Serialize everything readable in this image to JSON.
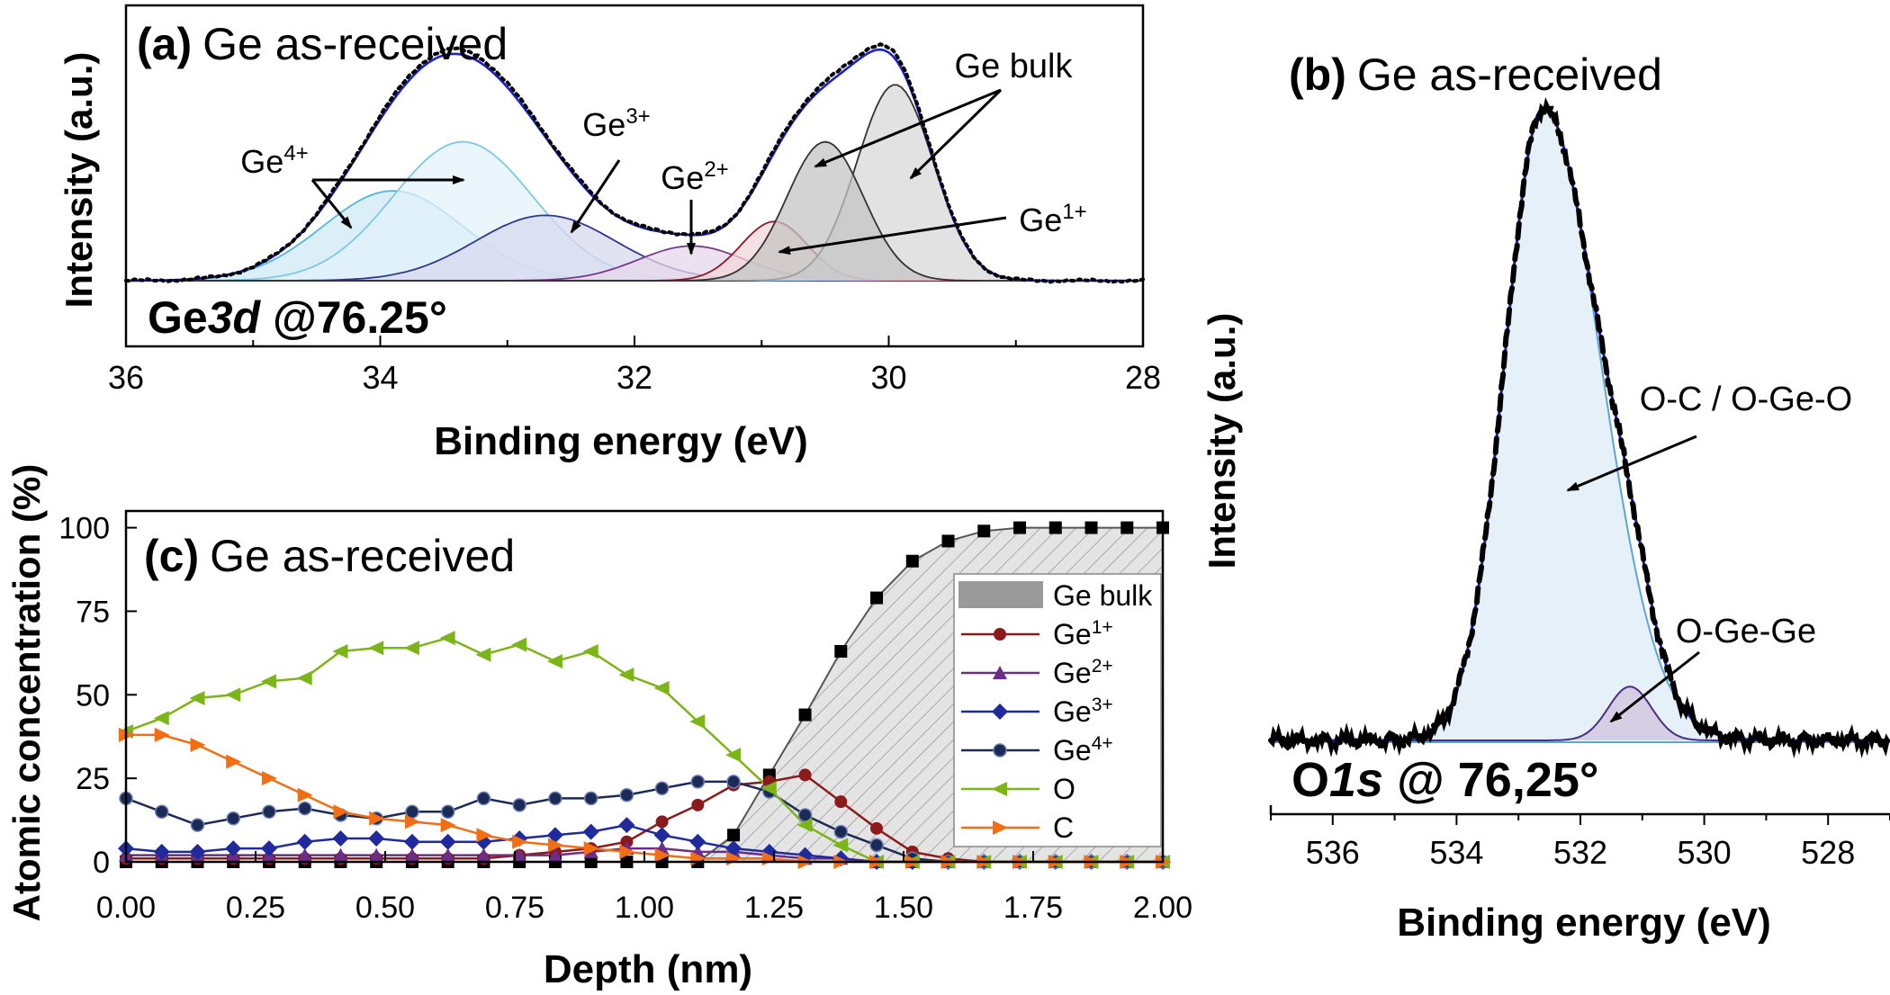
{
  "chart_data": [
    {
      "id": "a",
      "type": "line",
      "panel_label": "(a)",
      "title": "Ge as-received",
      "annotation": {
        "prefix": "Ge",
        "italic": "3d",
        "suffix": " @76.25°"
      },
      "xlabel": "Binding energy (eV)",
      "ylabel": "Intensity (a.u.)",
      "xlim": [
        36,
        28
      ],
      "ylim": [
        0,
        1.25
      ],
      "xticks": [
        36,
        34,
        32,
        30,
        28
      ],
      "peak_labels": [
        {
          "text": "Ge",
          "sup": "4+"
        },
        {
          "text": "Ge",
          "sup": "3+"
        },
        {
          "text": "Ge",
          "sup": "2+"
        },
        {
          "text": "Ge",
          "sup": "1+"
        },
        {
          "text": "Ge bulk",
          "sup": ""
        }
      ],
      "components": [
        {
          "name": "Ge4+ (i)",
          "center": 33.9,
          "height": 0.44,
          "sigma": 0.55,
          "fill": "#cfe9f7",
          "stroke": "#56b4e0"
        },
        {
          "name": "Ge4+ (ii)",
          "center": 33.35,
          "height": 0.68,
          "sigma": 0.55,
          "fill": "#e3f1fb",
          "stroke": "#7cc8ea"
        },
        {
          "name": "Ge3+",
          "center": 32.7,
          "height": 0.32,
          "sigma": 0.55,
          "fill": "#d7d9ef",
          "stroke": "#2e3a8c"
        },
        {
          "name": "Ge2+",
          "center": 31.55,
          "height": 0.17,
          "sigma": 0.42,
          "fill": "#e6d8ea",
          "stroke": "#7a3a8a"
        },
        {
          "name": "Ge1+",
          "center": 30.9,
          "height": 0.29,
          "sigma": 0.26,
          "fill": "#f1d6da",
          "stroke": "#8b1a2a"
        },
        {
          "name": "Ge bulk 3d5/2",
          "center": 29.95,
          "height": 0.96,
          "sigma": 0.3,
          "fill": "#d8d8d8",
          "stroke": "#333333"
        },
        {
          "name": "Ge bulk 3d3/2",
          "center": 30.5,
          "height": 0.68,
          "sigma": 0.3,
          "fill": "#c4c4c4",
          "stroke": "#333333"
        }
      ]
    },
    {
      "id": "b",
      "type": "line",
      "panel_label": "(b)",
      "title": "Ge as-received",
      "annotation": {
        "prefix": "O",
        "italic": "1s",
        "suffix": " @ 76,25°"
      },
      "xlabel": "Binding energy (eV)",
      "ylabel": "Intensity (a.u.)",
      "xlim": [
        537,
        527
      ],
      "ylim": [
        0,
        1.05
      ],
      "xticks": [
        536,
        534,
        532,
        530,
        528
      ],
      "peak_labels": [
        "O-C / O-Ge-O",
        "O-Ge-Ge"
      ],
      "components": [
        {
          "name": "O-C / O-Ge-O",
          "center": 532.6,
          "height": 1.0,
          "sigma_low": 0.62,
          "sigma_high": 0.92,
          "fill": "#e6f0f8",
          "stroke": "#5aa6d6"
        },
        {
          "name": "O-Ge-Ge",
          "center": 531.2,
          "height": 0.085,
          "sigma": 0.35,
          "fill": "#d6cfe3",
          "stroke": "#4b2e83"
        }
      ]
    },
    {
      "id": "c",
      "type": "line",
      "panel_label": "(c)",
      "title": "Ge as-received",
      "xlabel": "Depth (nm)",
      "ylabel": "Atomic concentration (%)",
      "xlim": [
        0,
        2.0
      ],
      "ylim": [
        0,
        105
      ],
      "xticks": [
        "0.00",
        "0.25",
        "0.50",
        "0.75",
        "1.00",
        "1.25",
        "1.50",
        "1.75",
        "2.00"
      ],
      "yticks": [
        0,
        25,
        50,
        75,
        100
      ],
      "x": [
        0.0,
        0.069,
        0.138,
        0.207,
        0.276,
        0.345,
        0.414,
        0.483,
        0.552,
        0.621,
        0.69,
        0.759,
        0.828,
        0.897,
        0.966,
        1.034,
        1.103,
        1.172,
        1.241,
        1.31,
        1.379,
        1.448,
        1.517,
        1.586,
        1.655,
        1.724,
        1.793,
        1.862,
        1.931,
        2.0
      ],
      "series": [
        {
          "name": "Ge bulk",
          "sup": "",
          "color": "#000000",
          "marker": "square",
          "style": "area",
          "values": [
            0,
            0,
            0,
            0,
            0,
            0,
            0,
            0,
            0,
            0,
            0,
            0,
            0,
            0,
            0,
            0,
            0,
            8,
            26,
            44,
            63,
            79,
            90,
            96,
            99,
            100,
            100,
            100,
            100,
            100
          ]
        },
        {
          "name": "Ge",
          "sup": "1+",
          "color": "#8b1a1a",
          "marker": "circle",
          "values": [
            1,
            1,
            1,
            1,
            1,
            1,
            1,
            1,
            1,
            1,
            1,
            2,
            3,
            4,
            6,
            12,
            17,
            23,
            24,
            26,
            18,
            10,
            3,
            1,
            0,
            0,
            0,
            0,
            0,
            0
          ]
        },
        {
          "name": "Ge",
          "sup": "2+",
          "color": "#6b2c8a",
          "marker": "triangle-up",
          "values": [
            2,
            2,
            2,
            2,
            2,
            2,
            2,
            2,
            2,
            2,
            2,
            2,
            2,
            3,
            4,
            4,
            3,
            3,
            2,
            1,
            1,
            0,
            0,
            0,
            0,
            0,
            0,
            0,
            0,
            0
          ]
        },
        {
          "name": "Ge",
          "sup": "3+",
          "color": "#1f2a9c",
          "marker": "diamond",
          "values": [
            4,
            3,
            3,
            4,
            4,
            6,
            7,
            7,
            6,
            6,
            6,
            7,
            8,
            9,
            11,
            8,
            6,
            4,
            3,
            2,
            1,
            0,
            0,
            0,
            0,
            0,
            0,
            0,
            0,
            0
          ]
        },
        {
          "name": "Ge",
          "sup": "4+",
          "color": "#1c2a56",
          "marker": "sphere",
          "values": [
            19,
            15,
            11,
            13,
            15,
            16,
            14,
            13,
            15,
            15,
            19,
            17,
            19,
            19,
            20,
            22,
            24,
            24,
            21,
            14,
            9,
            5,
            1,
            0,
            0,
            0,
            0,
            0,
            0,
            0
          ]
        },
        {
          "name": "O",
          "sup": "",
          "color": "#7cb518",
          "marker": "triangle-left",
          "values": [
            39,
            43,
            49,
            50,
            54,
            55,
            63,
            64,
            64,
            67,
            62,
            65,
            60,
            63,
            56,
            52,
            42,
            32,
            22,
            11,
            5,
            0,
            0,
            0,
            0,
            0,
            0,
            0,
            0,
            0
          ]
        },
        {
          "name": "C",
          "sup": "",
          "color": "#f36d12",
          "marker": "triangle-right",
          "values": [
            38,
            38,
            35,
            30,
            25,
            20,
            15,
            13,
            12,
            11,
            8,
            6,
            5,
            4,
            3,
            2,
            1,
            1,
            1,
            0,
            0,
            0,
            0,
            0,
            0,
            0,
            0,
            0,
            0,
            0
          ]
        }
      ]
    }
  ]
}
